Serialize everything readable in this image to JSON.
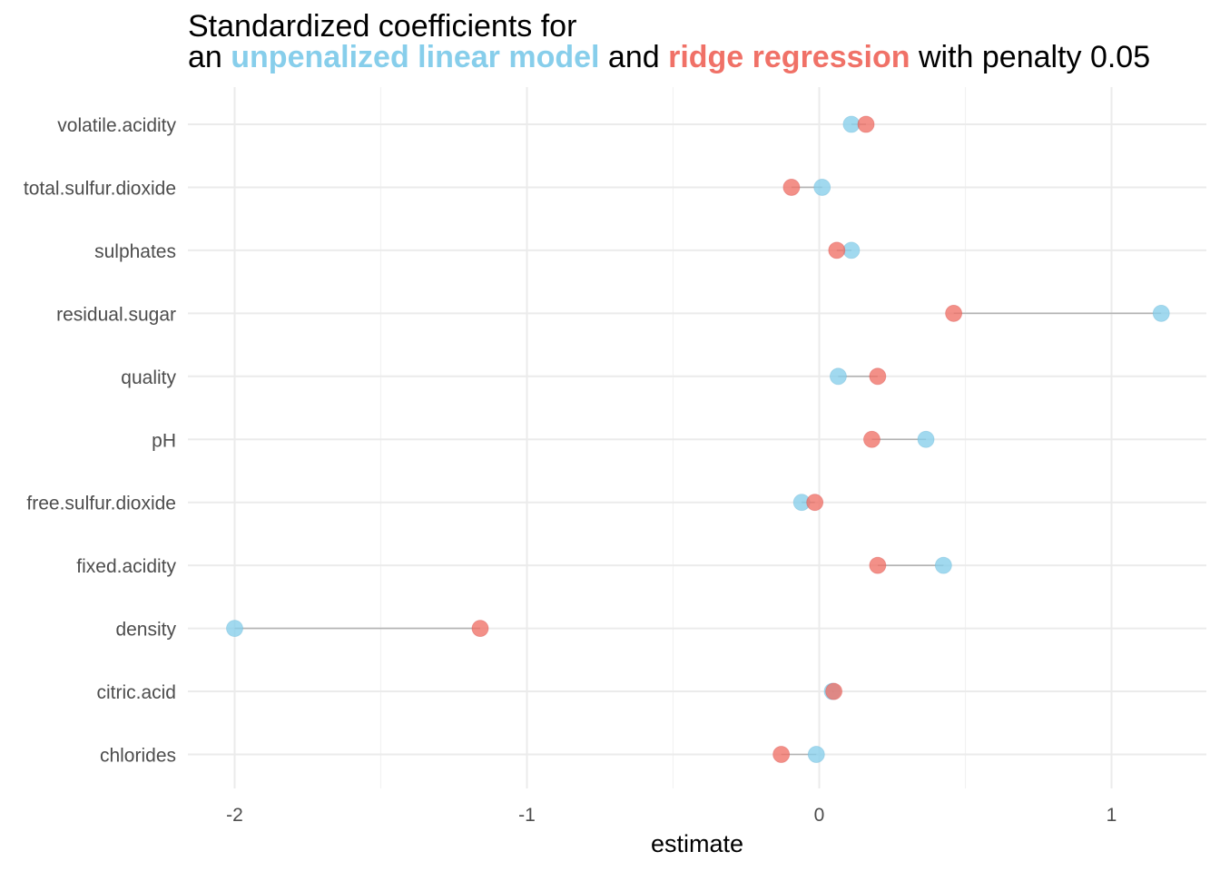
{
  "chart_data": {
    "type": "scatter",
    "title": {
      "line1": "Standardized coefficients for",
      "line2_prefix": "an ",
      "line2_series1": "unpenalized linear model",
      "line2_middle": " and ",
      "line2_series2": "ridge regression",
      "line2_suffix": " with penalty 0.05"
    },
    "xlabel": "estimate",
    "ylabel": "",
    "xlim": [
      -2.14,
      1.32
    ],
    "x_ticks": [
      -2,
      -1,
      0,
      1
    ],
    "x_tick_labels": [
      "-2",
      "-1",
      "0",
      "1"
    ],
    "x_minor_ticks": [
      -1.5,
      -0.5,
      0.5
    ],
    "grid": true,
    "legend": "none",
    "categories": [
      "volatile.acidity",
      "total.sulfur.dioxide",
      "sulphates",
      "residual.sugar",
      "quality",
      "pH",
      "free.sulfur.dioxide",
      "fixed.acidity",
      "density",
      "citric.acid",
      "chlorides"
    ],
    "series": [
      {
        "name": "unpenalized linear model",
        "color": "#87CEEB",
        "values": [
          0.11,
          0.01,
          0.11,
          1.17,
          0.065,
          0.365,
          -0.06,
          0.425,
          -2.0,
          0.045,
          -0.01
        ]
      },
      {
        "name": "ridge regression",
        "color": "#F07167",
        "values": [
          0.16,
          -0.095,
          0.06,
          0.46,
          0.2,
          0.18,
          -0.015,
          0.2,
          -1.16,
          0.05,
          -0.13
        ]
      }
    ]
  }
}
